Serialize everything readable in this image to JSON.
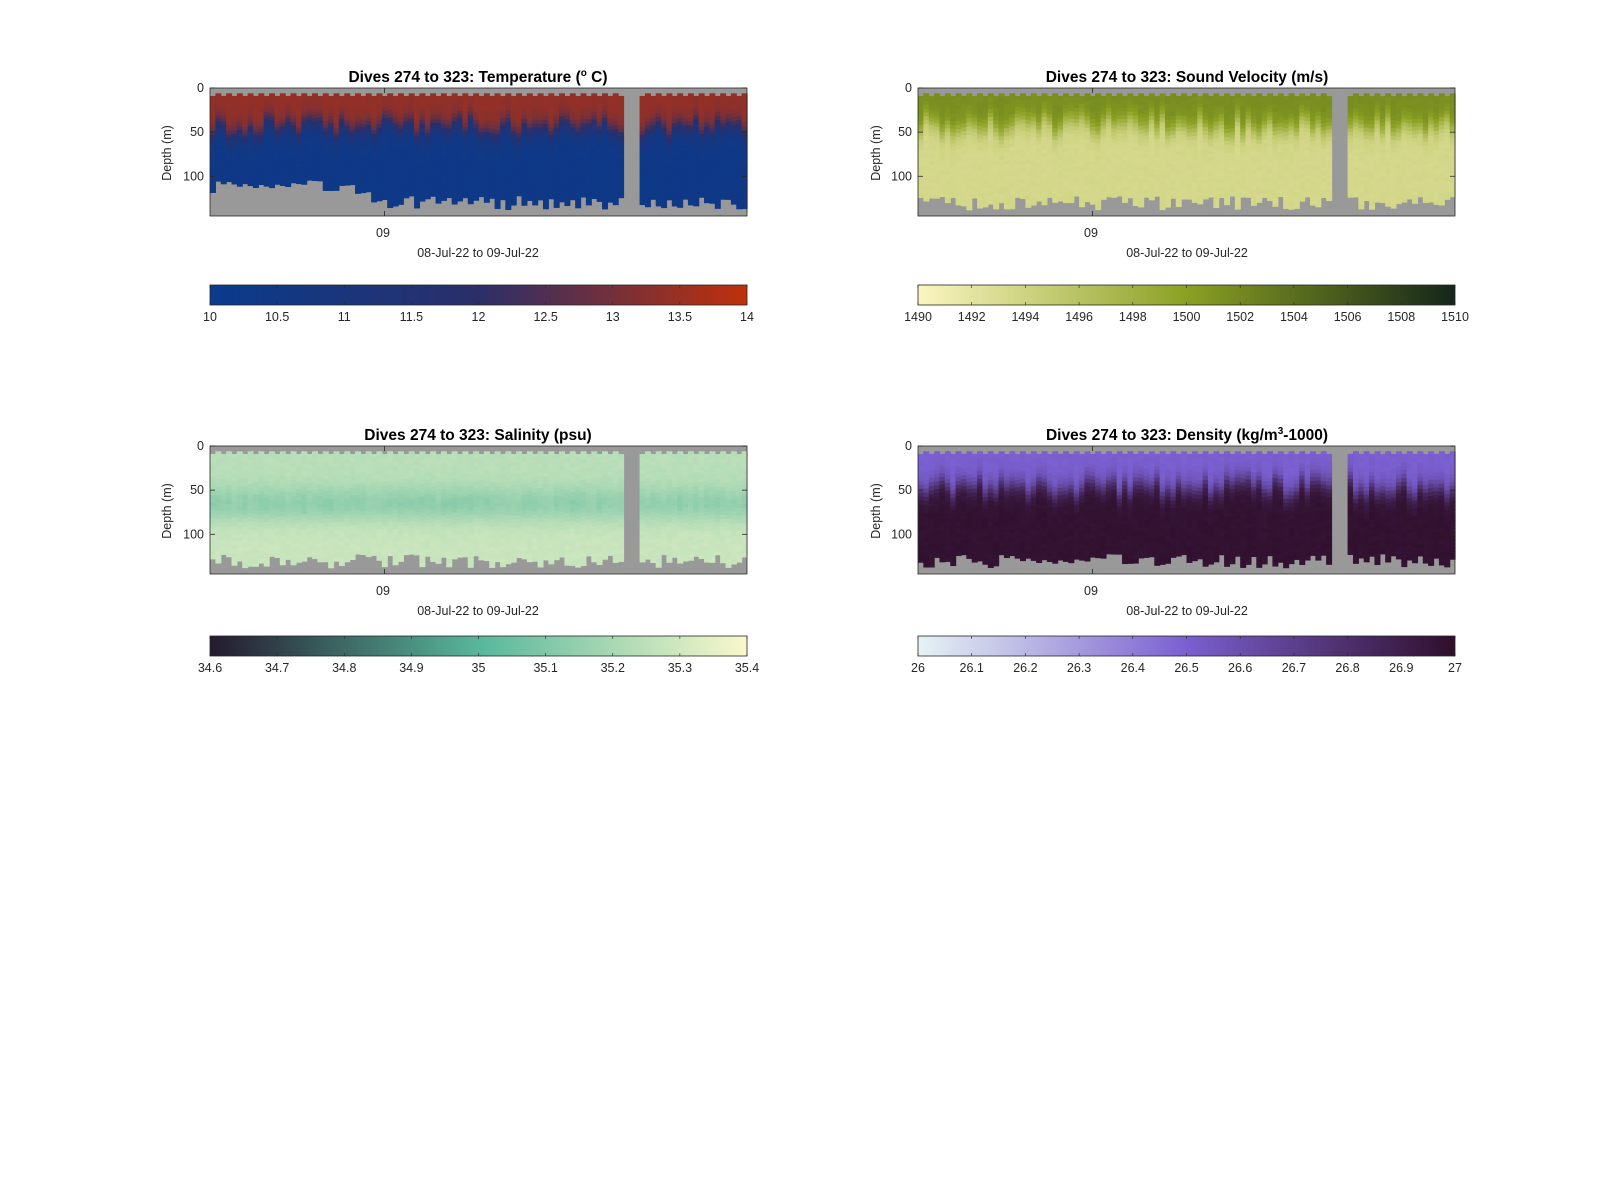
{
  "chart_data": [
    {
      "type": "heatmap",
      "title_prefix": "Dives 274 to 323: Temperature (",
      "title_sup": "o",
      "title_suffix": " C)",
      "ylabel": "Depth (m)",
      "xlabel": "08-Jul-22 to 09-Jul-22",
      "x_tick_labels": [
        "09"
      ],
      "y_ticks": [
        0,
        50,
        100
      ],
      "ylim": [
        0,
        145
      ],
      "colorbar": {
        "ticks": [
          "10",
          "10.5",
          "11",
          "11.5",
          "12",
          "12.5",
          "13",
          "13.5",
          "14"
        ],
        "range": [
          10,
          14
        ]
      },
      "colors": {
        "low": "#0a3b8c",
        "mid": "#2a2f6a",
        "high": "#c0300a",
        "nodata": "#999999"
      },
      "profile": {
        "surface_value": 13.4,
        "deep_value": 10.3,
        "thermocline_depth_m": 45
      }
    },
    {
      "type": "heatmap",
      "title_prefix": "Dives 274 to 323: Sound Velocity (m/s)",
      "title_sup": "",
      "title_suffix": "",
      "ylabel": "Depth (m)",
      "xlabel": "08-Jul-22 to 09-Jul-22",
      "x_tick_labels": [
        "09"
      ],
      "y_ticks": [
        0,
        50,
        100
      ],
      "ylim": [
        0,
        145
      ],
      "colorbar": {
        "ticks": [
          "1490",
          "1492",
          "1494",
          "1496",
          "1498",
          "1500",
          "1502",
          "1504",
          "1506",
          "1508",
          "1510"
        ],
        "range": [
          1490,
          1510
        ]
      },
      "colors": {
        "low": "#fbf5c2",
        "mid": "#8aa022",
        "high": "#15261a",
        "nodata": "#999999"
      },
      "profile": {
        "surface_value": 1501.5,
        "deep_value": 1493.5,
        "thermocline_depth_m": 40
      }
    },
    {
      "type": "heatmap",
      "title_prefix": "Dives 274 to 323: Salinity (psu)",
      "title_sup": "",
      "title_suffix": "",
      "ylabel": "Depth (m)",
      "xlabel": "08-Jul-22 to 09-Jul-22",
      "x_tick_labels": [
        "09"
      ],
      "y_ticks": [
        0,
        50,
        100
      ],
      "ylim": [
        0,
        145
      ],
      "colorbar": {
        "ticks": [
          "34.6",
          "34.7",
          "34.8",
          "34.9",
          "35",
          "35.1",
          "35.2",
          "35.3",
          "35.4"
        ],
        "range": [
          34.6,
          35.4
        ]
      },
      "colors": {
        "low": "#241a2e",
        "mid": "#57b79b",
        "high": "#f9f8cc",
        "nodata": "#999999"
      },
      "profile": {
        "surface_value": 35.24,
        "deep_value": 35.28,
        "thermocline_depth_m": 60
      }
    },
    {
      "type": "heatmap",
      "title_prefix": "Dives 274 to 323: Density (kg/m",
      "title_sup": "3",
      "title_suffix": "-1000)",
      "ylabel": "Depth (m)",
      "xlabel": "08-Jul-22 to 09-Jul-22",
      "x_tick_labels": [
        "09"
      ],
      "y_ticks": [
        0,
        50,
        100
      ],
      "ylim": [
        0,
        145
      ],
      "colorbar": {
        "ticks": [
          "26",
          "26.1",
          "26.2",
          "26.3",
          "26.4",
          "26.5",
          "26.6",
          "26.7",
          "26.8",
          "26.9",
          "27"
        ],
        "range": [
          26,
          27
        ]
      },
      "colors": {
        "low": "#e6f3f3",
        "mid": "#7a5fd0",
        "high": "#2f0f2a",
        "nodata": "#999999"
      },
      "profile": {
        "surface_value": 26.5,
        "deep_value": 26.98,
        "thermocline_depth_m": 45
      }
    }
  ]
}
